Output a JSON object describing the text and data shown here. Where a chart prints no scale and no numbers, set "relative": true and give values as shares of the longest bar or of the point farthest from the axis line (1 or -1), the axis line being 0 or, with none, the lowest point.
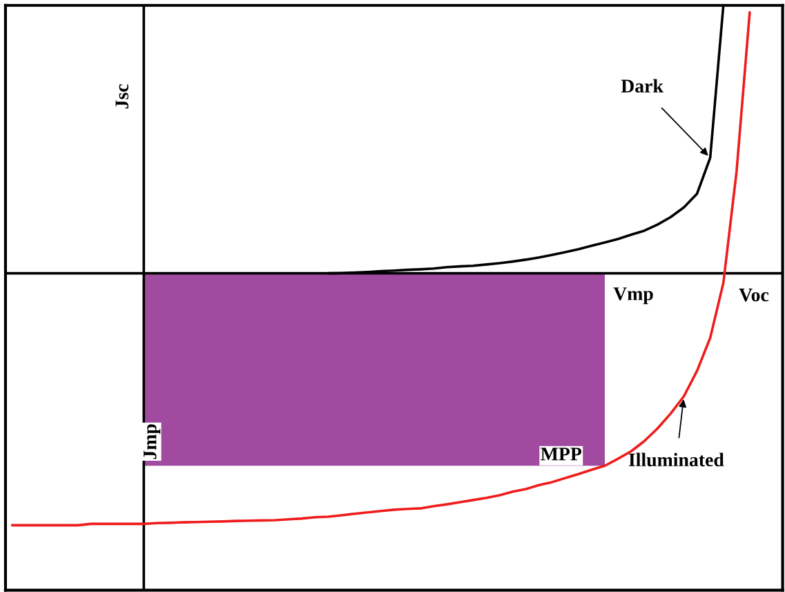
{
  "chart_data": {
    "type": "line",
    "relative": true,
    "marker": "none",
    "line_style": "solid",
    "categories": [
      null,
      null,
      null,
      null,
      null,
      null,
      null,
      null,
      null,
      null,
      null,
      null,
      null,
      null,
      null,
      null,
      null,
      null,
      null,
      null,
      null,
      null,
      null,
      null,
      null,
      null,
      null,
      null,
      null,
      null,
      null,
      null,
      null,
      null,
      null,
      null,
      null,
      null,
      null,
      null,
      null,
      null,
      null,
      null,
      null,
      null,
      null,
      null,
      null,
      null,
      null,
      null,
      null,
      null,
      null,
      null,
      null,
      null,
      null
    ],
    "series": [
      {
        "name": "Dark",
        "color": "#000000",
        "values": [
          null,
          null,
          null,
          null,
          null,
          null,
          null,
          null,
          null,
          null,
          null,
          null,
          null,
          null,
          null,
          null,
          null,
          null,
          null,
          null,
          null,
          null,
          null,
          null,
          0,
          0.001,
          0.003,
          0.005,
          0.008,
          0.01,
          0.013,
          0.015,
          0.018,
          0.023,
          0.026,
          0.028,
          0.033,
          0.038,
          0.044,
          0.051,
          0.059,
          0.069,
          0.079,
          0.09,
          0.103,
          0.115,
          0.128,
          0.144,
          0.159,
          0.182,
          0.21,
          0.246,
          0.297,
          0.431,
          1.0,
          null,
          null,
          null,
          null
        ]
      },
      {
        "name": "Illuminated",
        "color": "#ee1c1c",
        "values": [
          -0.94,
          -0.94,
          -0.94,
          -0.94,
          -0.94,
          -0.94,
          -0.935,
          -0.935,
          -0.935,
          -0.935,
          -0.935,
          -0.932,
          -0.931,
          -0.929,
          -0.928,
          -0.927,
          -0.926,
          -0.924,
          -0.923,
          -0.922,
          -0.921,
          -0.918,
          -0.915,
          -0.91,
          -0.908,
          -0.903,
          -0.897,
          -0.892,
          -0.887,
          -0.882,
          -0.879,
          -0.877,
          -0.869,
          -0.862,
          -0.854,
          -0.846,
          -0.838,
          -0.828,
          -0.815,
          -0.805,
          -0.79,
          -0.779,
          -0.764,
          -0.749,
          -0.733,
          -0.718,
          -0.692,
          -0.664,
          -0.626,
          -0.579,
          -0.523,
          -0.459,
          -0.364,
          -0.241,
          -0.036,
          0.379,
          0.974,
          null,
          null
        ]
      },
      {
        "type": "area",
        "color": "#a04ba0",
        "values": [
          null,
          null,
          null,
          null,
          null,
          null,
          null,
          null,
          null,
          null,
          -0.718,
          -0.718,
          -0.718,
          -0.718,
          -0.718,
          -0.718,
          -0.718,
          -0.718,
          -0.718,
          -0.718,
          -0.718,
          -0.718,
          -0.718,
          -0.718,
          -0.718,
          -0.718,
          -0.718,
          -0.718,
          -0.718,
          -0.718,
          -0.718,
          -0.718,
          -0.718,
          -0.718,
          -0.718,
          -0.718,
          -0.718,
          -0.718,
          -0.718,
          -0.718,
          -0.718,
          -0.718,
          -0.718,
          -0.718,
          -0.718,
          -0.718,
          null,
          null,
          null,
          null,
          null,
          null,
          null,
          null,
          null,
          null,
          null,
          null,
          null
        ]
      }
    ],
    "annotations": [
      "Jsc",
      "Vmp",
      "Voc",
      "Jmp",
      "MPP"
    ]
  }
}
